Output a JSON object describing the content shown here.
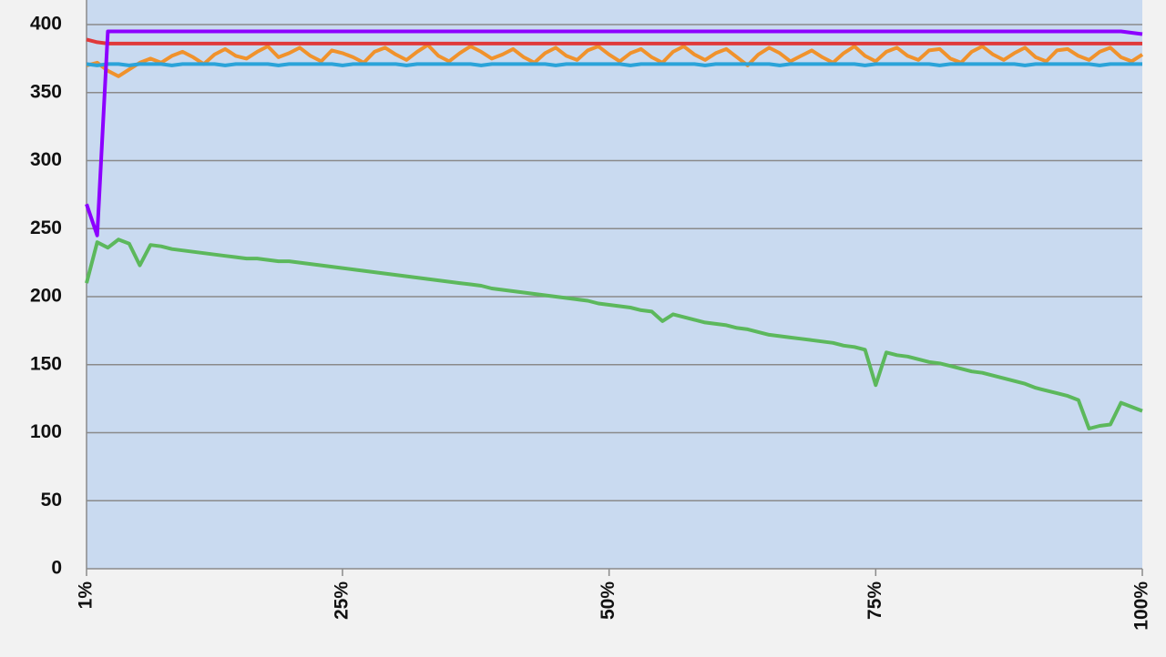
{
  "chart_data": {
    "type": "line",
    "x": [
      1,
      2,
      3,
      4,
      5,
      6,
      7,
      8,
      9,
      10,
      11,
      12,
      13,
      14,
      15,
      16,
      17,
      18,
      19,
      20,
      21,
      22,
      23,
      24,
      25,
      26,
      27,
      28,
      29,
      30,
      31,
      32,
      33,
      34,
      35,
      36,
      37,
      38,
      39,
      40,
      41,
      42,
      43,
      44,
      45,
      46,
      47,
      48,
      49,
      50,
      51,
      52,
      53,
      54,
      55,
      56,
      57,
      58,
      59,
      60,
      61,
      62,
      63,
      64,
      65,
      66,
      67,
      68,
      69,
      70,
      71,
      72,
      73,
      74,
      75,
      76,
      77,
      78,
      79,
      80,
      81,
      82,
      83,
      84,
      85,
      86,
      87,
      88,
      89,
      90,
      91,
      92,
      93,
      94,
      95,
      96,
      97,
      98,
      99,
      100
    ],
    "xlim": [
      1,
      100
    ],
    "xticks": [
      {
        "value": 1,
        "label": "1%"
      },
      {
        "value": 25,
        "label": "25%"
      },
      {
        "value": 50,
        "label": "50%"
      },
      {
        "value": 75,
        "label": "75%"
      },
      {
        "value": 100,
        "label": "100%"
      }
    ],
    "ylim": [
      0,
      400
    ],
    "yticks": [
      0,
      50,
      100,
      150,
      200,
      250,
      300,
      350,
      400
    ],
    "grid": true,
    "series": [
      {
        "color": "#f0922c",
        "values": [
          370,
          372,
          366,
          362,
          367,
          372,
          375,
          372,
          377,
          380,
          376,
          371,
          378,
          382,
          377,
          375,
          380,
          384,
          376,
          379,
          383,
          377,
          373,
          381,
          379,
          376,
          372,
          380,
          383,
          378,
          374,
          380,
          385,
          377,
          373,
          379,
          384,
          380,
          375,
          378,
          382,
          376,
          372,
          379,
          383,
          377,
          374,
          381,
          384,
          378,
          373,
          379,
          382,
          376,
          372,
          380,
          384,
          378,
          374,
          379,
          382,
          376,
          370,
          378,
          383,
          379,
          373,
          377,
          381,
          376,
          372,
          379,
          384,
          377,
          373,
          380,
          383,
          377,
          374,
          381,
          382,
          375,
          372,
          380,
          384,
          378,
          374,
          379,
          383,
          376,
          373,
          381,
          382,
          377,
          374,
          380,
          383,
          376,
          373,
          378
        ]
      },
      {
        "color": "#2ba3d9",
        "values": [
          371,
          370,
          371,
          371,
          370,
          371,
          371,
          371,
          370,
          371,
          371,
          371,
          371,
          370,
          371,
          371,
          371,
          371,
          370,
          371,
          371,
          371,
          371,
          371,
          370,
          371,
          371,
          371,
          371,
          371,
          370,
          371,
          371,
          371,
          371,
          371,
          371,
          370,
          371,
          371,
          371,
          371,
          371,
          371,
          370,
          371,
          371,
          371,
          371,
          371,
          371,
          370,
          371,
          371,
          371,
          371,
          371,
          371,
          370,
          371,
          371,
          371,
          371,
          371,
          371,
          370,
          371,
          371,
          371,
          371,
          371,
          371,
          371,
          370,
          371,
          371,
          371,
          371,
          371,
          371,
          370,
          371,
          371,
          371,
          371,
          371,
          371,
          371,
          370,
          371,
          371,
          371,
          371,
          371,
          371,
          370,
          371,
          371,
          371,
          371
        ]
      },
      {
        "color": "#e0393a",
        "values": [
          389,
          387,
          386,
          386,
          386,
          386,
          386,
          386,
          386,
          386,
          386,
          386,
          386,
          386,
          386,
          386,
          386,
          386,
          386,
          386,
          386,
          386,
          386,
          386,
          386,
          386,
          386,
          386,
          386,
          386,
          386,
          386,
          386,
          386,
          386,
          386,
          386,
          386,
          386,
          386,
          386,
          386,
          386,
          386,
          386,
          386,
          386,
          386,
          386,
          386,
          386,
          386,
          386,
          386,
          386,
          386,
          386,
          386,
          386,
          386,
          386,
          386,
          386,
          386,
          386,
          386,
          386,
          386,
          386,
          386,
          386,
          386,
          386,
          386,
          386,
          386,
          386,
          386,
          386,
          386,
          386,
          386,
          386,
          386,
          386,
          386,
          386,
          386,
          386,
          386,
          386,
          386,
          386,
          386,
          386,
          386,
          386,
          386,
          386,
          386
        ]
      },
      {
        "color": "#8c00ff",
        "values": [
          268,
          245,
          395,
          395,
          395,
          395,
          395,
          395,
          395,
          395,
          395,
          395,
          395,
          395,
          395,
          395,
          395,
          395,
          395,
          395,
          395,
          395,
          395,
          395,
          395,
          395,
          395,
          395,
          395,
          395,
          395,
          395,
          395,
          395,
          395,
          395,
          395,
          395,
          395,
          395,
          395,
          395,
          395,
          395,
          395,
          395,
          395,
          395,
          395,
          395,
          395,
          395,
          395,
          395,
          395,
          395,
          395,
          395,
          395,
          395,
          395,
          395,
          395,
          395,
          395,
          395,
          395,
          395,
          395,
          395,
          395,
          395,
          395,
          395,
          395,
          395,
          395,
          395,
          395,
          395,
          395,
          395,
          395,
          395,
          395,
          395,
          395,
          395,
          395,
          395,
          395,
          395,
          395,
          395,
          395,
          395,
          395,
          395,
          394,
          393
        ]
      },
      {
        "color": "#5cb85c",
        "values": [
          210,
          240,
          236,
          242,
          239,
          223,
          238,
          237,
          235,
          234,
          233,
          232,
          231,
          230,
          229,
          228,
          228,
          227,
          226,
          226,
          225,
          224,
          223,
          222,
          221,
          220,
          219,
          218,
          217,
          216,
          215,
          214,
          213,
          212,
          211,
          210,
          209,
          208,
          206,
          205,
          204,
          203,
          202,
          201,
          200,
          199,
          198,
          197,
          195,
          194,
          193,
          192,
          190,
          189,
          182,
          187,
          185,
          183,
          181,
          180,
          179,
          177,
          176,
          174,
          172,
          171,
          170,
          169,
          168,
          167,
          166,
          164,
          163,
          161,
          135,
          159,
          157,
          156,
          154,
          152,
          151,
          149,
          147,
          145,
          144,
          142,
          140,
          138,
          136,
          133,
          131,
          129,
          127,
          124,
          103,
          105,
          106,
          122,
          119,
          116
        ]
      }
    ]
  }
}
